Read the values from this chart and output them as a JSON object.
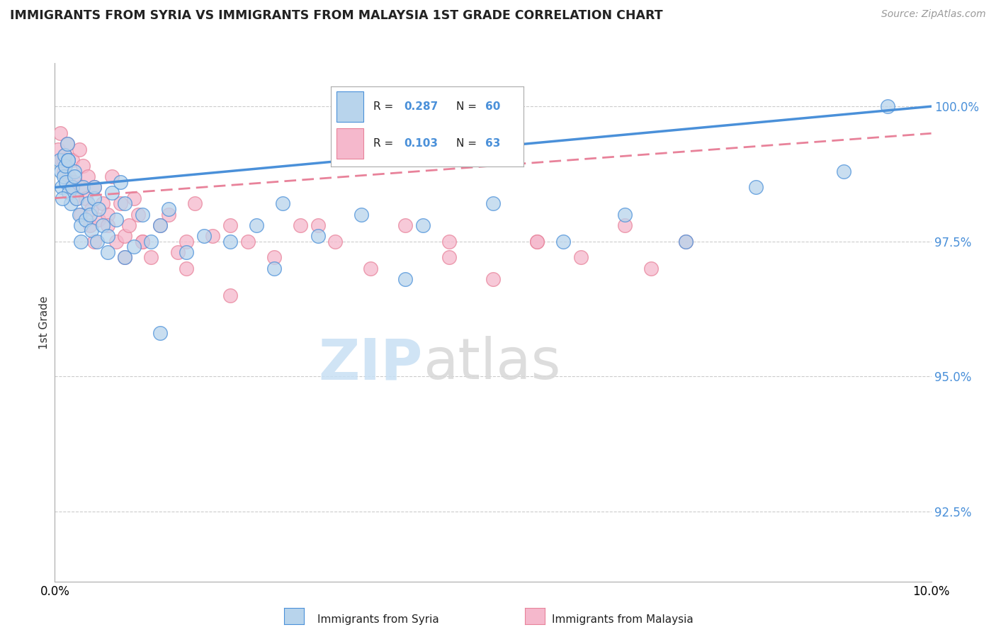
{
  "title": "IMMIGRANTS FROM SYRIA VS IMMIGRANTS FROM MALAYSIA 1ST GRADE CORRELATION CHART",
  "source": "Source: ZipAtlas.com",
  "ylabel": "1st Grade",
  "x_min": 0.0,
  "x_max": 10.0,
  "y_min": 91.2,
  "y_max": 100.8,
  "y_ticks": [
    92.5,
    95.0,
    97.5,
    100.0
  ],
  "y_tick_labels": [
    "92.5%",
    "95.0%",
    "97.5%",
    "100.0%"
  ],
  "legend_r_syria": "0.287",
  "legend_n_syria": "60",
  "legend_r_malaysia": "0.103",
  "legend_n_malaysia": "63",
  "color_syria_fill": "#b8d4ec",
  "color_malaysia_fill": "#f5b8cc",
  "color_syria_edge": "#4a90d9",
  "color_malaysia_edge": "#e8829a",
  "color_syria_line": "#4a90d9",
  "color_malaysia_line": "#e8829a",
  "color_ytick": "#4a90d9",
  "syria_x": [
    0.05,
    0.07,
    0.08,
    0.1,
    0.11,
    0.12,
    0.13,
    0.14,
    0.15,
    0.16,
    0.18,
    0.2,
    0.22,
    0.25,
    0.28,
    0.3,
    0.32,
    0.35,
    0.38,
    0.4,
    0.42,
    0.45,
    0.48,
    0.5,
    0.55,
    0.6,
    0.65,
    0.7,
    0.75,
    0.8,
    0.9,
    1.0,
    1.1,
    1.2,
    1.3,
    1.5,
    1.7,
    2.0,
    2.3,
    2.6,
    3.0,
    3.5,
    4.2,
    5.0,
    5.8,
    6.5,
    7.2,
    8.0,
    9.0,
    9.5,
    0.09,
    0.15,
    0.22,
    0.3,
    0.45,
    0.6,
    0.8,
    1.2,
    2.5,
    4.0
  ],
  "syria_y": [
    99.0,
    98.8,
    98.5,
    98.7,
    99.1,
    98.9,
    98.6,
    99.3,
    99.0,
    98.4,
    98.2,
    98.5,
    98.8,
    98.3,
    98.0,
    97.8,
    98.5,
    97.9,
    98.2,
    98.0,
    97.7,
    98.3,
    97.5,
    98.1,
    97.8,
    97.6,
    98.4,
    97.9,
    98.6,
    98.2,
    97.4,
    98.0,
    97.5,
    97.8,
    98.1,
    97.3,
    97.6,
    97.5,
    97.8,
    98.2,
    97.6,
    98.0,
    97.8,
    98.2,
    97.5,
    98.0,
    97.5,
    98.5,
    98.8,
    100.0,
    98.3,
    99.0,
    98.7,
    97.5,
    98.5,
    97.3,
    97.2,
    95.8,
    97.0,
    96.8
  ],
  "malaysia_x": [
    0.04,
    0.06,
    0.08,
    0.1,
    0.12,
    0.14,
    0.16,
    0.18,
    0.2,
    0.22,
    0.25,
    0.28,
    0.3,
    0.32,
    0.35,
    0.38,
    0.4,
    0.42,
    0.45,
    0.5,
    0.55,
    0.6,
    0.65,
    0.7,
    0.75,
    0.8,
    0.85,
    0.9,
    0.95,
    1.0,
    1.1,
    1.2,
    1.3,
    1.4,
    1.5,
    1.6,
    1.8,
    2.0,
    2.2,
    2.5,
    2.8,
    3.2,
    3.6,
    4.0,
    4.5,
    5.0,
    5.5,
    6.0,
    6.5,
    7.2,
    0.1,
    0.2,
    0.3,
    0.45,
    0.6,
    0.8,
    1.0,
    1.5,
    2.0,
    3.0,
    4.5,
    5.5,
    6.8
  ],
  "malaysia_y": [
    99.2,
    99.5,
    99.0,
    98.8,
    99.1,
    99.3,
    98.7,
    98.5,
    99.0,
    98.6,
    98.3,
    99.2,
    98.5,
    98.9,
    98.3,
    98.7,
    97.8,
    98.1,
    98.5,
    97.9,
    98.2,
    98.0,
    98.7,
    97.5,
    98.2,
    97.6,
    97.8,
    98.3,
    98.0,
    97.5,
    97.2,
    97.8,
    98.0,
    97.3,
    97.5,
    98.2,
    97.6,
    97.8,
    97.5,
    97.2,
    97.8,
    97.5,
    97.0,
    97.8,
    97.5,
    96.8,
    97.5,
    97.2,
    97.8,
    97.5,
    99.0,
    98.5,
    98.0,
    97.5,
    97.8,
    97.2,
    97.5,
    97.0,
    96.5,
    97.8,
    97.2,
    97.5,
    97.0
  ],
  "syria_trend_x": [
    0.0,
    10.0
  ],
  "syria_trend_y": [
    98.5,
    100.0
  ],
  "malaysia_trend_x": [
    0.0,
    10.0
  ],
  "malaysia_trend_y": [
    98.3,
    99.5
  ]
}
